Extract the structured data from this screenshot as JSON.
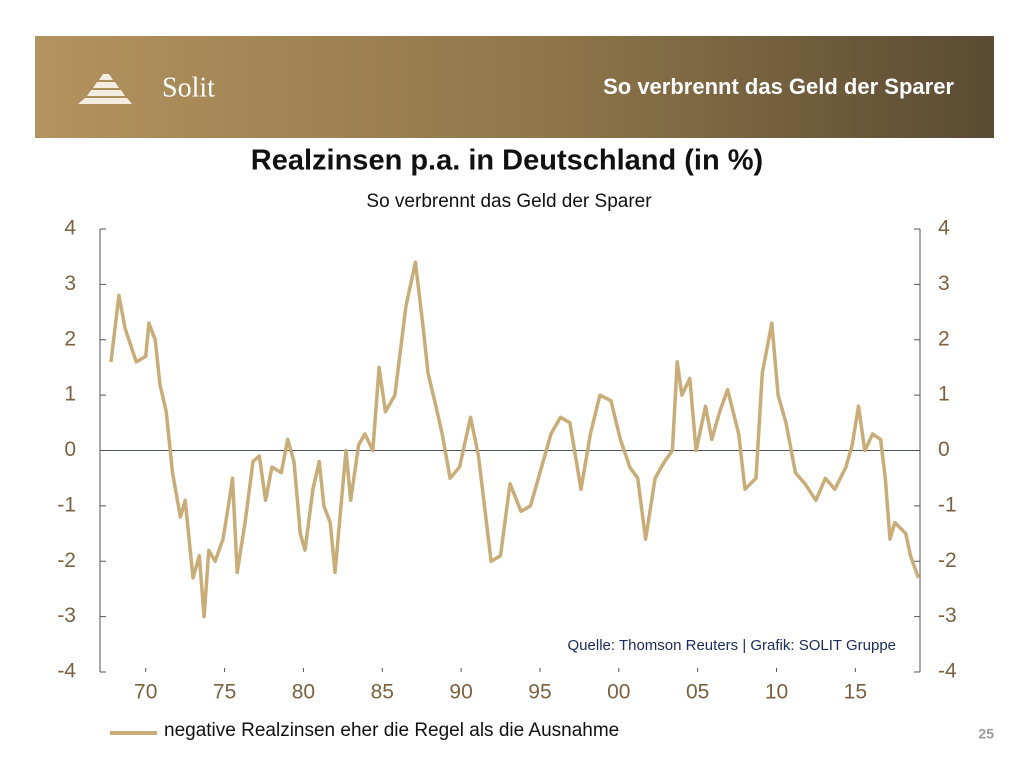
{
  "header": {
    "logo": "Solit",
    "title": "So verbrennt das Geld der Sparer"
  },
  "page_number": "25",
  "chart_data": {
    "type": "line",
    "title": "Realzinsen p.a. in Deutschland (in %)",
    "subtitle": "So verbrennt das Geld der Sparer",
    "annotation": "Quelle: Thomson Reuters | Grafik: SOLIT Gruppe",
    "x": [
      1967.8,
      1968.3,
      1968.7,
      1969.4,
      1970.0,
      1970.2,
      1970.6,
      1970.9,
      1971.3,
      1971.7,
      1972.2,
      1972.5,
      1973.0,
      1973.4,
      1973.7,
      1974.0,
      1974.4,
      1974.9,
      1975.3,
      1975.5,
      1975.8,
      1976.3,
      1976.8,
      1977.2,
      1977.6,
      1978.0,
      1978.6,
      1979.0,
      1979.4,
      1979.8,
      1980.1,
      1980.6,
      1981.0,
      1981.3,
      1981.7,
      1982.0,
      1982.7,
      1983.0,
      1983.5,
      1983.9,
      1984.4,
      1984.8,
      1985.2,
      1985.8,
      1986.5,
      1987.1,
      1987.6,
      1987.9,
      1988.4,
      1988.8,
      1989.3,
      1989.9,
      1990.6,
      1991.1,
      1991.9,
      1992.5,
      1993.1,
      1993.8,
      1994.4,
      1995.0,
      1995.7,
      1996.3,
      1996.9,
      1997.6,
      1998.2,
      1998.8,
      1999.5,
      2000.1,
      2000.7,
      2001.2,
      2001.7,
      2002.3,
      2002.9,
      2003.4,
      2003.7,
      2004.0,
      2004.5,
      2004.9,
      2005.5,
      2005.9,
      2006.4,
      2006.9,
      2007.6,
      2008.0,
      2008.7,
      2009.1,
      2009.7,
      2010.1,
      2010.6,
      2011.2,
      2011.8,
      2012.5,
      2013.1,
      2013.7,
      2014.4,
      2014.8,
      2015.2,
      2015.6,
      2016.1,
      2016.6,
      2016.9,
      2017.2,
      2017.5,
      2018.2,
      2018.5,
      2019.0
    ],
    "series": [
      {
        "name": "negative Realzinsen eher die Regel als die Ausnahme",
        "color": "#c9ad78",
        "values": [
          1.6,
          2.8,
          2.2,
          1.6,
          1.7,
          2.3,
          2.0,
          1.2,
          0.7,
          -0.4,
          -1.2,
          -0.9,
          -2.3,
          -1.9,
          -3.0,
          -1.8,
          -2.0,
          -1.6,
          -0.9,
          -0.5,
          -2.2,
          -1.3,
          -0.2,
          -0.1,
          -0.9,
          -0.3,
          -0.4,
          0.2,
          -0.2,
          -1.5,
          -1.8,
          -0.7,
          -0.2,
          -1.0,
          -1.3,
          -2.2,
          0.0,
          -0.9,
          0.1,
          0.3,
          0.0,
          1.5,
          0.7,
          1.0,
          2.6,
          3.4,
          2.2,
          1.4,
          0.8,
          0.3,
          -0.5,
          -0.3,
          0.6,
          -0.1,
          -2.0,
          -1.9,
          -0.6,
          -1.1,
          -1.0,
          -0.4,
          0.3,
          0.6,
          0.5,
          -0.7,
          0.3,
          1.0,
          0.9,
          0.2,
          -0.3,
          -0.5,
          -1.6,
          -0.5,
          -0.2,
          0.0,
          1.6,
          1.0,
          1.3,
          0.0,
          0.8,
          0.2,
          0.7,
          1.1,
          0.3,
          -0.7,
          -0.5,
          1.4,
          2.3,
          1.0,
          0.5,
          -0.4,
          -0.6,
          -0.9,
          -0.5,
          -0.7,
          -0.3,
          0.1,
          0.8,
          0.0,
          0.3,
          0.2,
          -0.5,
          -1.6,
          -1.3,
          -1.5,
          -1.9,
          -2.3
        ]
      }
    ],
    "xlim": [
      1967.1,
      2019.1
    ],
    "xticks": [
      {
        "value": 1970,
        "label": "70"
      },
      {
        "value": 1975,
        "label": "75"
      },
      {
        "value": 1980,
        "label": "80"
      },
      {
        "value": 1985,
        "label": "85"
      },
      {
        "value": 1990,
        "label": "90"
      },
      {
        "value": 1995,
        "label": "95"
      },
      {
        "value": 2000,
        "label": "00"
      },
      {
        "value": 2005,
        "label": "05"
      },
      {
        "value": 2010,
        "label": "10"
      },
      {
        "value": 2015,
        "label": "15"
      }
    ],
    "ylim": [
      -4,
      4
    ],
    "yticks": [
      -4,
      -3,
      -2,
      -1,
      0,
      1,
      2,
      3,
      4
    ],
    "y2lim": [
      -4,
      4
    ],
    "y2ticks": [
      -4,
      -3,
      -2,
      -1,
      0,
      1,
      2,
      3,
      4
    ]
  }
}
